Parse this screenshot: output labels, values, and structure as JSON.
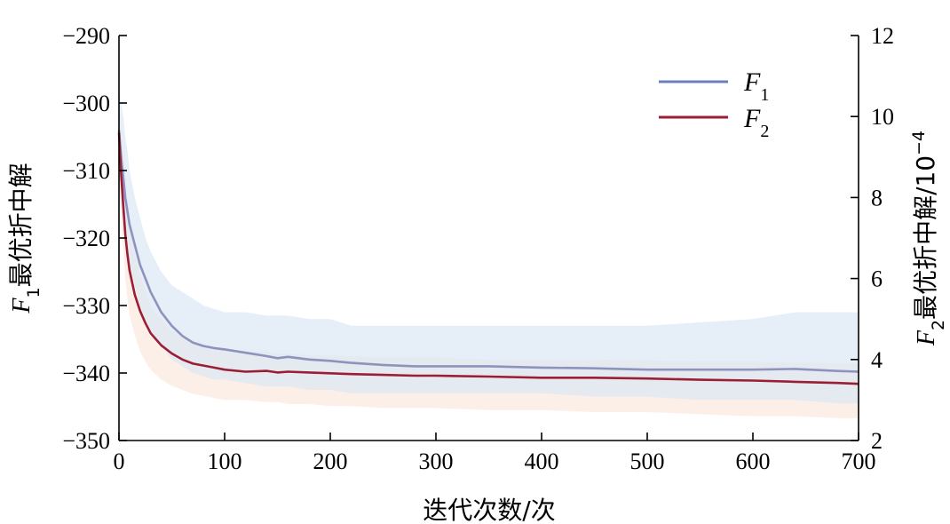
{
  "chart_data": {
    "type": "line",
    "x": [
      0,
      2,
      4,
      6,
      8,
      10,
      15,
      20,
      25,
      30,
      40,
      50,
      60,
      70,
      80,
      90,
      100,
      120,
      140,
      150,
      160,
      180,
      200,
      220,
      250,
      280,
      300,
      350,
      400,
      450,
      500,
      550,
      600,
      640,
      680,
      700
    ],
    "xlim": [
      0,
      700
    ],
    "xticks": [
      "0",
      "100",
      "200",
      "300",
      "400",
      "500",
      "600",
      "700"
    ],
    "xlabel": "迭代次数/次",
    "y_left": {
      "label_var": "F",
      "label_sub": "1",
      "label_text": "最优折中解",
      "lim": [
        -350,
        -290
      ],
      "ticks": [
        "−350",
        "−340",
        "−330",
        "−320",
        "−310",
        "−300",
        "−290"
      ]
    },
    "y_right": {
      "label_var": "F",
      "label_sub": "2",
      "label_text": "最优折中解/10",
      "label_sup": "−4",
      "lim": [
        2,
        12
      ],
      "ticks": [
        "2",
        "4",
        "6",
        "8",
        "10",
        "12"
      ]
    },
    "series": [
      {
        "name": "F1",
        "name_var": "F",
        "name_sub": "1",
        "axis": "left",
        "color": "#8e93bd",
        "legend_color": "#6b7fb8",
        "band_color": "#dde8f4",
        "values": [
          -304,
          -308,
          -311,
          -314,
          -316,
          -318,
          -321,
          -324,
          -326,
          -328,
          -331,
          -333,
          -334.5,
          -335.5,
          -336,
          -336.3,
          -336.5,
          -337,
          -337.5,
          -337.8,
          -337.6,
          -338,
          -338.2,
          -338.5,
          -338.8,
          -339,
          -339,
          -339,
          -339.2,
          -339.3,
          -339.5,
          -339.5,
          -339.5,
          -339.4,
          -339.7,
          -339.8
        ],
        "band_upper": [
          -298,
          -300,
          -302,
          -305,
          -307,
          -310,
          -314,
          -317,
          -320,
          -322,
          -325,
          -327,
          -328,
          -329,
          -330,
          -330.5,
          -331,
          -331,
          -331.5,
          -331.5,
          -331.5,
          -332,
          -332,
          -333,
          -333,
          -333,
          -333,
          -333,
          -333,
          -333,
          -333,
          -332.5,
          -332,
          -331,
          -331,
          -331
        ],
        "band_lower": [
          -310,
          -314,
          -317,
          -320,
          -322,
          -324,
          -327,
          -330,
          -332,
          -334,
          -336,
          -338,
          -339,
          -340,
          -340.5,
          -341,
          -341,
          -341.5,
          -342,
          -342,
          -342,
          -342.5,
          -342.5,
          -343,
          -343,
          -343,
          -343,
          -343,
          -343,
          -343.5,
          -343.5,
          -344,
          -344,
          -344,
          -344.5,
          -344.5
        ]
      },
      {
        "name": "F2",
        "name_var": "F",
        "name_sub": "2",
        "axis": "right",
        "color": "#9b1e35",
        "legend_color": "#9b1e35",
        "band_color": "#fbe9e0",
        "values": [
          9.6,
          8.6,
          7.8,
          7.1,
          6.6,
          6.2,
          5.6,
          5.2,
          4.9,
          4.65,
          4.35,
          4.15,
          4.0,
          3.9,
          3.85,
          3.8,
          3.75,
          3.7,
          3.72,
          3.68,
          3.7,
          3.68,
          3.66,
          3.64,
          3.62,
          3.6,
          3.6,
          3.58,
          3.55,
          3.55,
          3.53,
          3.5,
          3.48,
          3.45,
          3.42,
          3.4
        ],
        "band_upper": [
          10.3,
          9.8,
          9.2,
          8.5,
          7.9,
          7.4,
          6.6,
          6.1,
          5.7,
          5.3,
          5.0,
          4.7,
          4.55,
          4.45,
          4.35,
          4.3,
          4.25,
          4.2,
          4.2,
          4.15,
          4.15,
          4.1,
          4.1,
          4.08,
          4.05,
          4.05,
          4.05,
          4.0,
          4.0,
          4.0,
          3.98,
          3.95,
          3.95,
          3.92,
          3.9,
          3.9
        ],
        "band_lower": [
          8.5,
          7.5,
          6.7,
          6.0,
          5.5,
          5.1,
          4.6,
          4.2,
          3.95,
          3.75,
          3.5,
          3.35,
          3.25,
          3.15,
          3.1,
          3.05,
          3.0,
          3.0,
          2.95,
          2.95,
          2.9,
          2.9,
          2.85,
          2.85,
          2.8,
          2.8,
          2.8,
          2.75,
          2.75,
          2.7,
          2.7,
          2.65,
          2.6,
          2.6,
          2.55,
          2.55
        ]
      }
    ],
    "legend_position": "top-right",
    "grid": false
  }
}
